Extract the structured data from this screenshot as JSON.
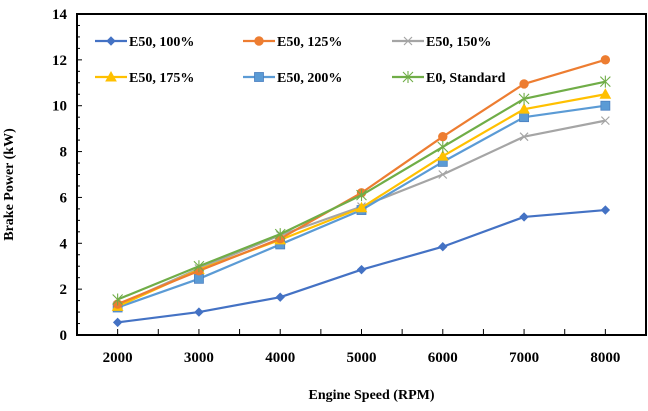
{
  "chart_data": {
    "type": "line",
    "title": "",
    "xlabel": "Engine Speed (RPM)",
    "ylabel": "Brake Power  (kW)",
    "x": [
      2000,
      3000,
      4000,
      5000,
      6000,
      7000,
      8000
    ],
    "xticks": [
      "2000",
      "3000",
      "4000",
      "5000",
      "6000",
      "7000",
      "8000"
    ],
    "xlim": [
      1500,
      8500
    ],
    "ylim": [
      0,
      14
    ],
    "yticks": [
      "0",
      "2",
      "4",
      "6",
      "8",
      "10",
      "12",
      "14"
    ],
    "grid": false,
    "legend_position": "top-left, inside plot, 3 columns",
    "series": [
      {
        "name": "E50, 100%",
        "color": "#4472C4",
        "marker": "diamond",
        "values": [
          0.55,
          1.0,
          1.65,
          2.85,
          3.85,
          5.15,
          5.45
        ]
      },
      {
        "name": "E50, 125%",
        "color": "#ED7D31",
        "marker": "circle",
        "values": [
          1.35,
          2.8,
          4.2,
          6.2,
          8.65,
          10.95,
          12.0
        ]
      },
      {
        "name": "E50, 150%",
        "color": "#A5A5A5",
        "marker": "x",
        "values": [
          1.3,
          2.9,
          4.35,
          5.6,
          7.0,
          8.65,
          9.35
        ]
      },
      {
        "name": "E50, 175%",
        "color": "#FFC000",
        "marker": "triangle",
        "values": [
          1.25,
          2.85,
          4.15,
          5.55,
          7.8,
          9.85,
          10.5
        ]
      },
      {
        "name": "E50, 200%",
        "color": "#5B9BD5",
        "marker": "square",
        "values": [
          1.2,
          2.45,
          3.95,
          5.45,
          7.55,
          9.5,
          10.0
        ]
      },
      {
        "name": "E0, Standard",
        "color": "#70AD47",
        "marker": "star",
        "values": [
          1.55,
          3.0,
          4.4,
          6.1,
          8.2,
          10.3,
          11.05
        ]
      }
    ]
  }
}
